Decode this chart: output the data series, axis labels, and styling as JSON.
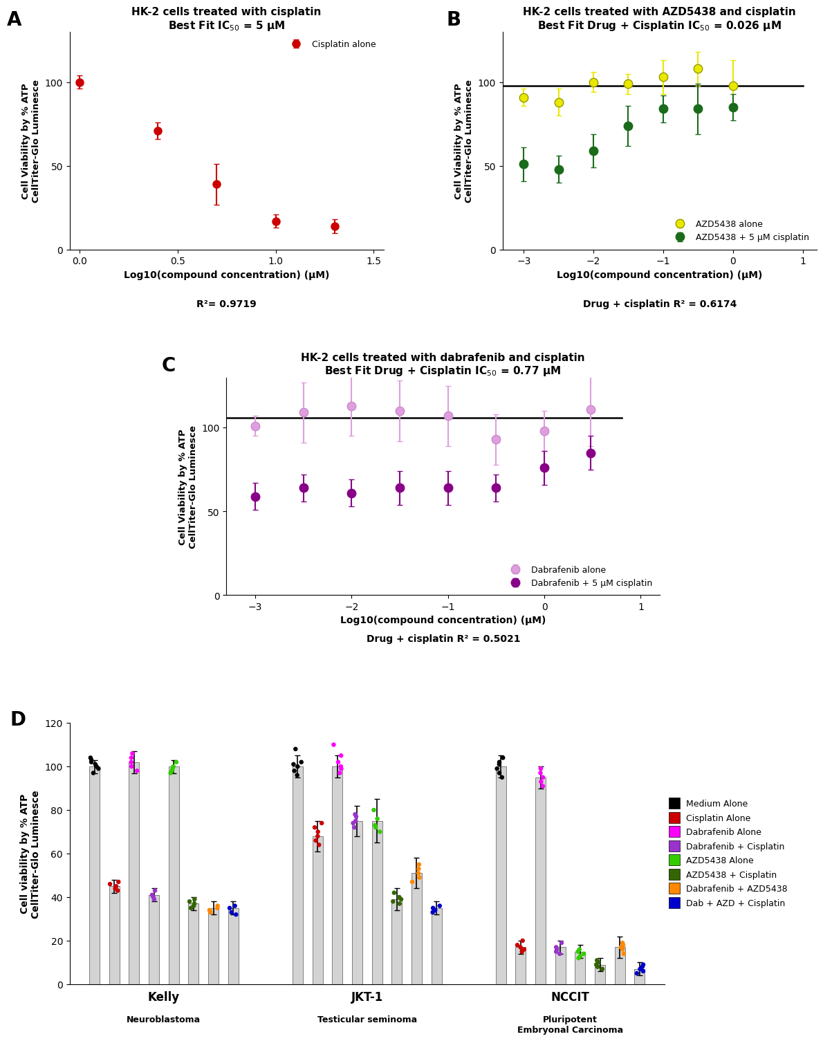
{
  "panel_A": {
    "title": "HK-2 cells treated with cisplatin",
    "subtitle": "Best Fit IC$_{50}$ = 5 μM",
    "xlabel": "Log10(compound concentration) (μM)",
    "r2_label": "R²= 0.9719",
    "xlim": [
      -0.05,
      1.55
    ],
    "ylim": [
      0,
      130
    ],
    "yticks": [
      0,
      50,
      100
    ],
    "xticks": [
      0.0,
      0.5,
      1.0,
      1.5
    ],
    "cisplatin_x": [
      0.0,
      0.4,
      0.699,
      1.0,
      1.301
    ],
    "cisplatin_y": [
      100,
      71,
      39,
      17,
      14
    ],
    "cisplatin_yerr": [
      4,
      5,
      12,
      4,
      4
    ],
    "line_color": "#000000",
    "marker_color": "#cc0000",
    "legend_label": "Cisplatin alone"
  },
  "panel_B": {
    "title": "HK-2 cells treated with AZD5438 and cisplatin",
    "subtitle": "Best Fit Drug + Cisplatin IC$_{50}$ = 0.026 μM",
    "xlabel": "Log10(compound concentration) (μM)",
    "r2_label": "Drug + cisplatin R² = 0.6174",
    "xlim": [
      -3.3,
      1.2
    ],
    "ylim": [
      0,
      130
    ],
    "yticks": [
      0,
      50,
      100
    ],
    "xticks": [
      -3,
      -2,
      -1,
      0,
      1
    ],
    "azd_alone_x": [
      -3.0,
      -2.5,
      -2.0,
      -1.5,
      -1.0,
      -0.5,
      0.0
    ],
    "azd_alone_y": [
      91,
      88,
      100,
      99,
      103,
      108,
      98
    ],
    "azd_alone_yerr": [
      5,
      8,
      6,
      6,
      10,
      10,
      15
    ],
    "azd_cisplatin_x": [
      -3.0,
      -2.5,
      -2.0,
      -1.5,
      -1.0,
      -0.5,
      0.0
    ],
    "azd_cisplatin_y": [
      51,
      48,
      59,
      74,
      84,
      84,
      85
    ],
    "azd_cisplatin_yerr": [
      10,
      8,
      10,
      12,
      8,
      15,
      8
    ],
    "line_color": "#000000",
    "azd_alone_color": "#e8e800",
    "azd_alone_edge": "#999900",
    "azd_cisplatin_color": "#1a6b1a",
    "legend_label_alone": "AZD5438 alone",
    "legend_label_cisplatin": "AZD5438 + 5 μM cisplatin"
  },
  "panel_C": {
    "title": "HK-2 cells treated with dabrafenib and cisplatin",
    "subtitle": "Best Fit Drug + Cisplatin IC$_{50}$ = 0.77 μM",
    "xlabel": "Log10(compound concentration) (μM)",
    "r2_label": "Drug + cisplatin R² = 0.5021",
    "xlim": [
      -3.3,
      1.2
    ],
    "ylim": [
      0,
      130
    ],
    "yticks": [
      0,
      50,
      100
    ],
    "xticks": [
      -3,
      -2,
      -1,
      0,
      1
    ],
    "dab_alone_x": [
      -3.0,
      -2.5,
      -2.0,
      -1.5,
      -1.0,
      -0.5,
      0.0,
      0.477
    ],
    "dab_alone_y": [
      101,
      109,
      113,
      110,
      107,
      93,
      98,
      111
    ],
    "dab_alone_yerr": [
      6,
      18,
      18,
      18,
      18,
      15,
      12,
      22
    ],
    "dab_cisplatin_x": [
      -3.0,
      -2.5,
      -2.0,
      -1.5,
      -1.0,
      -0.5,
      0.0,
      0.477
    ],
    "dab_cisplatin_y": [
      59,
      64,
      61,
      64,
      64,
      64,
      76,
      85
    ],
    "dab_cisplatin_yerr": [
      8,
      8,
      8,
      10,
      10,
      8,
      10,
      10
    ],
    "line_color": "#000000",
    "dab_alone_color": "#dda0dd",
    "dab_alone_edge": "#cc88cc",
    "dab_cisplatin_color": "#880088",
    "legend_label_alone": "Dabrafenib alone",
    "legend_label_cisplatin": "Dabrafenib + 5 μM cisplatin"
  },
  "panel_D": {
    "ylabel": "Cell viability by % ATP\nCellTiter-Glo Luminesce",
    "ylim": [
      0,
      120
    ],
    "yticks": [
      0,
      20,
      40,
      60,
      80,
      100,
      120
    ],
    "groups": [
      "Kelly",
      "JKT-1",
      "NCCIT"
    ],
    "group_labels": [
      "Neuroblastoma",
      "Testicular seminoma",
      "Pluripotent\nEmbryonal Carcinoma"
    ],
    "conditions": [
      "Medium Alone",
      "Cisplatin Alone",
      "Dabrafenib Alone",
      "Dabrafenib + Cisplatin",
      "AZD5438 Alone",
      "AZD5438 + Cisplatin",
      "Dabrafenib + AZD5438",
      "Dab + AZD + Cisplatin"
    ],
    "colors": [
      "#000000",
      "#cc0000",
      "#ff00ff",
      "#9933cc",
      "#33cc00",
      "#336600",
      "#ff8800",
      "#0000cc"
    ],
    "bar_values": {
      "Kelly": [
        100,
        45,
        102,
        41,
        100,
        37,
        35,
        35
      ],
      "JKT-1": [
        100,
        68,
        100,
        75,
        75,
        39,
        51,
        35
      ],
      "NCCIT": [
        100,
        17,
        95,
        17,
        15,
        9,
        17,
        7
      ]
    },
    "bar_errors": {
      "Kelly": [
        3,
        3,
        5,
        3,
        3,
        3,
        3,
        3
      ],
      "JKT-1": [
        5,
        7,
        5,
        7,
        10,
        5,
        7,
        3
      ],
      "NCCIT": [
        5,
        3,
        5,
        3,
        3,
        3,
        5,
        3
      ]
    },
    "scatter_values": {
      "Kelly": [
        [
          97,
          99,
          100,
          101,
          102,
          103,
          104
        ],
        [
          43,
          44,
          45,
          46,
          47
        ],
        [
          98,
          100,
          102,
          104,
          106
        ],
        [
          39,
          40,
          41,
          43
        ],
        [
          97,
          98,
          99,
          100,
          102
        ],
        [
          35,
          36,
          37,
          38,
          39
        ],
        [
          33,
          34,
          35,
          36
        ],
        [
          32,
          33,
          35,
          36
        ]
      ],
      "JKT-1": [
        [
          96,
          98,
          100,
          101,
          102,
          108
        ],
        [
          64,
          66,
          68,
          70,
          72,
          74
        ],
        [
          97,
          99,
          100,
          102,
          105,
          110
        ],
        [
          72,
          74,
          75,
          77,
          78
        ],
        [
          70,
          72,
          73,
          76,
          80
        ],
        [
          37,
          38,
          39,
          40,
          42
        ],
        [
          47,
          49,
          51,
          53,
          55
        ],
        [
          33,
          34,
          35,
          36
        ]
      ],
      "NCCIT": [
        [
          95,
          97,
          99,
          101,
          102,
          104
        ],
        [
          15,
          16,
          17,
          18,
          20
        ],
        [
          91,
          93,
          95,
          97,
          99
        ],
        [
          14,
          15,
          16,
          17,
          19
        ],
        [
          12,
          13,
          14,
          15,
          16
        ],
        [
          7,
          8,
          9,
          10,
          11
        ],
        [
          14,
          16,
          17,
          18,
          19
        ],
        [
          5,
          6,
          7,
          8,
          9
        ]
      ]
    }
  },
  "ylabel_curve": "Cell Viability by % ATP\nCellTiter-Glo Luminesce",
  "background_color": "#ffffff"
}
